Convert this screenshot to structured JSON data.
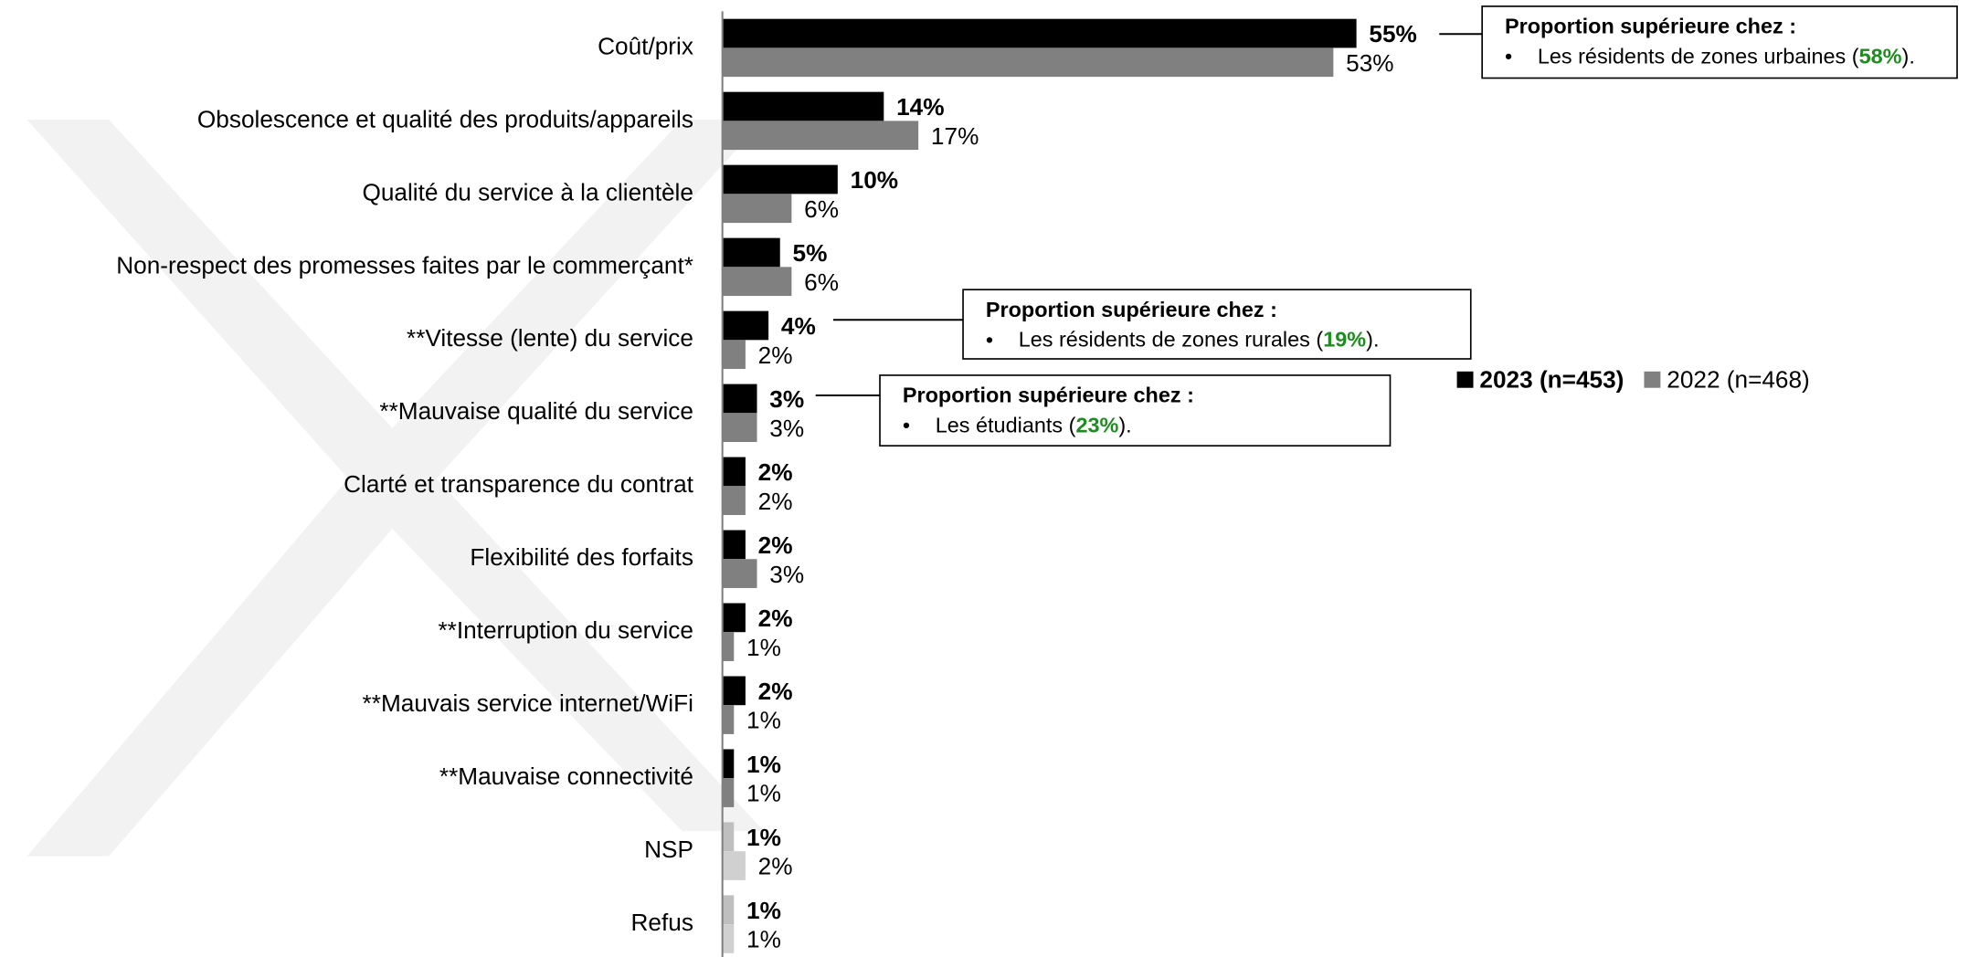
{
  "chart_data": {
    "type": "hbar",
    "categories": [
      "Coût/prix",
      "Obsolescence et qualité des produits/appareils",
      "Qualité du service à la clientèle",
      "Non-respect des promesses faites par le commerçant*",
      "**Vitesse (lente) du service",
      "**Mauvaise qualité du service",
      "Clarté et transparence du contrat",
      "Flexibilité des forfaits",
      "**Interruption du service",
      "**Mauvais service internet/WiFi",
      "**Mauvaise connectivité",
      "NSP",
      "Refus"
    ],
    "series": [
      {
        "name": "2023 (n=453)",
        "color": "#000000",
        "colors": [
          "#000000",
          "#000000",
          "#000000",
          "#000000",
          "#000000",
          "#000000",
          "#000000",
          "#000000",
          "#000000",
          "#000000",
          "#000000",
          "#bfbfbf",
          "#bfbfbf"
        ],
        "values": [
          55,
          14,
          10,
          5,
          4,
          3,
          2,
          2,
          2,
          2,
          1,
          1,
          1
        ],
        "value_labels": [
          "55%",
          "14%",
          "10%",
          "5%",
          "4%",
          "3%",
          "2%",
          "2%",
          "2%",
          "2%",
          "1%",
          "1%",
          "1%"
        ]
      },
      {
        "name": "2022 (n=468)",
        "color": "#808080",
        "colors": [
          "#808080",
          "#808080",
          "#808080",
          "#808080",
          "#808080",
          "#808080",
          "#808080",
          "#808080",
          "#808080",
          "#808080",
          "#808080",
          "#d0d0d0",
          "#d0d0d0"
        ],
        "values": [
          53,
          17,
          6,
          6,
          2,
          3,
          2,
          3,
          1,
          1,
          1,
          2,
          1
        ],
        "value_labels": [
          "53%",
          "17%",
          "6%",
          "6%",
          "2%",
          "3%",
          "2%",
          "3%",
          "1%",
          "1%",
          "1%",
          "2%",
          "1%"
        ]
      }
    ],
    "xlim": [
      0,
      60
    ],
    "legend": "right",
    "highlight_color": "#1e8c1e",
    "annotations": [
      {
        "category": 0,
        "title": "Proportion supérieure chez :",
        "text_before": "Les résidents de zones urbaines (",
        "highlight": "58%",
        "text_after": ")."
      },
      {
        "category": 4,
        "title": "Proportion supérieure chez :",
        "text_before": "Les résidents de zones rurales (",
        "highlight": "19%",
        "text_after": ")."
      },
      {
        "category": 5,
        "title": "Proportion supérieure chez :",
        "text_before": "Les étudiants (",
        "highlight": "23%",
        "text_after": ")."
      }
    ]
  }
}
